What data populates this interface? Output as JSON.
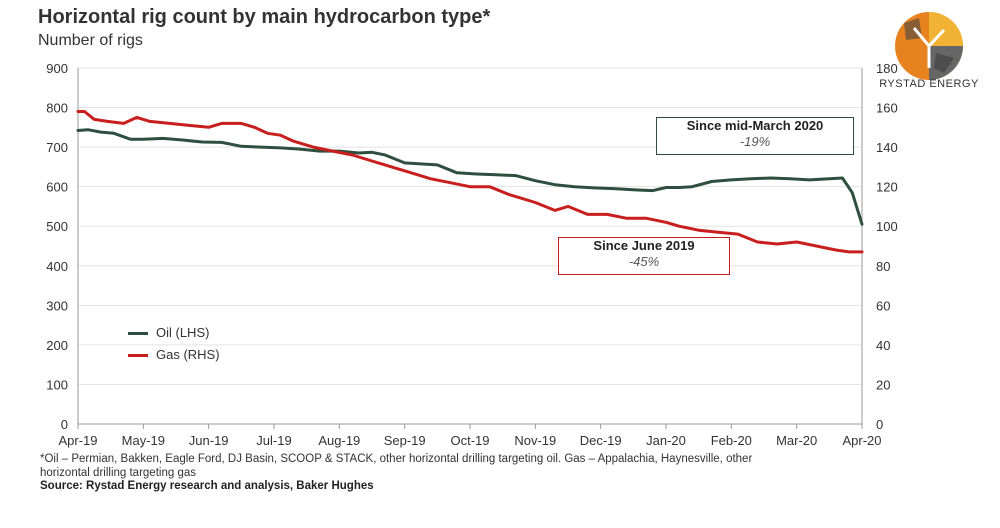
{
  "chart_data": {
    "type": "line",
    "title": "Horizontal rig count by main hydrocarbon type*",
    "subtitle": "Number of rigs",
    "categories": [
      "Apr-19",
      "May-19",
      "Jun-19",
      "Jul-19",
      "Aug-19",
      "Sep-19",
      "Oct-19",
      "Nov-19",
      "Dec-19",
      "Jan-20",
      "Feb-20",
      "Mar-20",
      "Apr-20"
    ],
    "y_left": {
      "ylim": [
        0,
        900
      ],
      "ticks": [
        "0",
        "100",
        "200",
        "300",
        "400",
        "500",
        "600",
        "700",
        "800",
        "900"
      ]
    },
    "y_right": {
      "ylim": [
        0,
        180
      ],
      "ticks": [
        "0",
        "20",
        "40",
        "60",
        "80",
        "100",
        "120",
        "140",
        "160",
        "180"
      ]
    },
    "grid": true,
    "legend_position": "middle-left",
    "series": [
      {
        "name": "Oil (LHS)",
        "axis": "left",
        "color": "#2e4f3e",
        "x": [
          0,
          0.15,
          0.35,
          0.55,
          0.8,
          1,
          1.3,
          1.6,
          1.9,
          2.2,
          2.5,
          2.8,
          3.1,
          3.4,
          3.7,
          4.0,
          4.3,
          4.5,
          4.7,
          5.0,
          5.3,
          5.5,
          5.8,
          6.1,
          6.4,
          6.7,
          7.0,
          7.3,
          7.6,
          7.9,
          8.2,
          8.5,
          8.8,
          9.0,
          9.2,
          9.4,
          9.7,
          10.0,
          10.3,
          10.6,
          10.9,
          11.2,
          11.5,
          11.7,
          11.85,
          12.0
        ],
        "y": [
          742,
          744,
          738,
          735,
          720,
          720,
          722,
          718,
          713,
          712,
          702,
          700,
          698,
          695,
          690,
          690,
          685,
          687,
          680,
          660,
          657,
          655,
          635,
          632,
          630,
          628,
          615,
          605,
          600,
          597,
          595,
          592,
          590,
          598,
          598,
          600,
          613,
          617,
          620,
          622,
          620,
          617,
          620,
          622,
          585,
          505
        ]
      },
      {
        "name": "Gas (RHS)",
        "axis": "right",
        "color": "#c81e1e",
        "x": [
          0,
          0.1,
          0.25,
          0.45,
          0.7,
          0.9,
          1.1,
          1.4,
          1.7,
          2.0,
          2.2,
          2.5,
          2.7,
          2.9,
          3.1,
          3.3,
          3.6,
          3.9,
          4.2,
          4.5,
          4.8,
          5.1,
          5.4,
          5.7,
          6.0,
          6.3,
          6.6,
          7.0,
          7.3,
          7.5,
          7.8,
          8.1,
          8.4,
          8.7,
          9.0,
          9.2,
          9.5,
          9.8,
          10.1,
          10.4,
          10.7,
          11.0,
          11.3,
          11.6,
          11.8,
          12.0
        ],
        "y": [
          158,
          158,
          154,
          153,
          152,
          155,
          153,
          152,
          151,
          150,
          152,
          152,
          150,
          147,
          146,
          143,
          140,
          138,
          136,
          133,
          130,
          127,
          124,
          122,
          120,
          120,
          116,
          112,
          108,
          110,
          106,
          106,
          104,
          104,
          102,
          100,
          98,
          97,
          96,
          92,
          91,
          92,
          90,
          88,
          87,
          87
        ]
      }
    ],
    "annotations": [
      {
        "head": "Since mid-March 2020",
        "value": "-19%",
        "series": "Oil (LHS)"
      },
      {
        "head": "Since June 2019",
        "value": "-45%",
        "series": "Gas (RHS)"
      }
    ]
  },
  "footnote": "*Oil – Permian, Bakken, Eagle Ford, DJ Basin, SCOOP & STACK, other horizontal drilling targeting oil. Gas – Appalachia, Haynesville, other horizontal drilling targeting gas",
  "source": "Source: Rystad Energy research and analysis, Baker Hughes",
  "brand": {
    "name": "RYSTAD ENERGY",
    "colors": {
      "orange": "#e8821e",
      "dark": "#555555",
      "gold": "#f2b234"
    }
  }
}
